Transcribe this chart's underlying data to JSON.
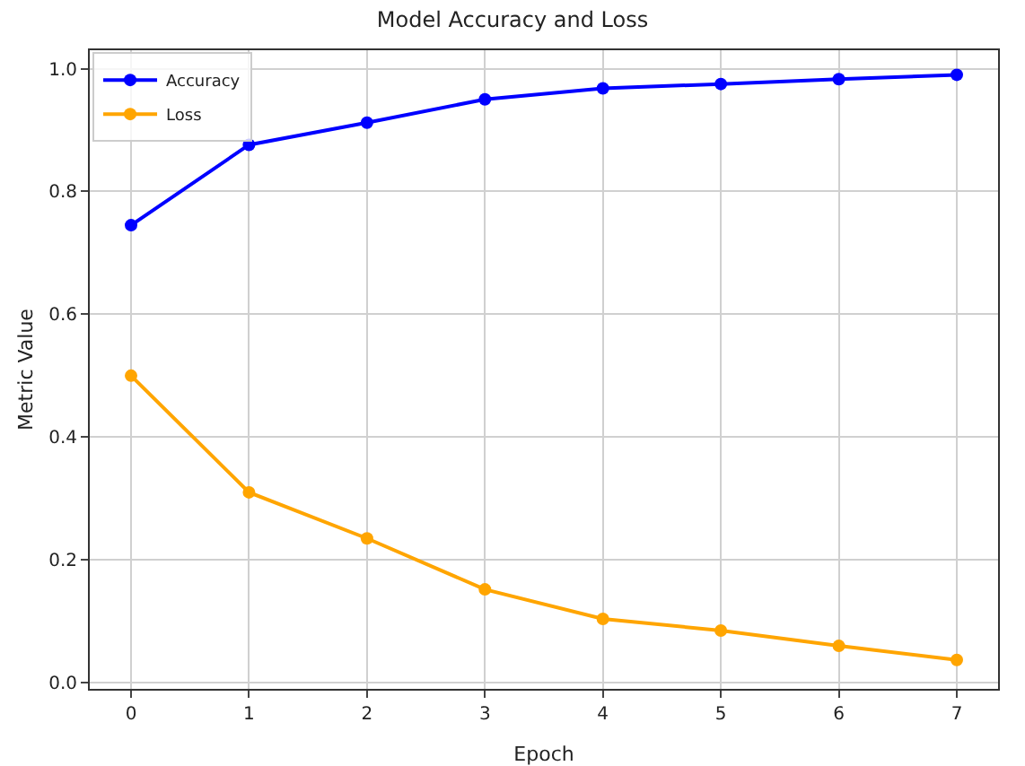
{
  "chart_data": {
    "type": "line",
    "title": "Model Accuracy and Loss",
    "xlabel": "Epoch",
    "ylabel": "Metric Value",
    "x": [
      0,
      1,
      2,
      3,
      4,
      5,
      6,
      7
    ],
    "series": [
      {
        "name": "Accuracy",
        "color": "#0000ff",
        "values": [
          0.745,
          0.876,
          0.912,
          0.95,
          0.968,
          0.975,
          0.983,
          0.99
        ]
      },
      {
        "name": "Loss",
        "color": "#ffa500",
        "values": [
          0.5,
          0.31,
          0.235,
          0.152,
          0.104,
          0.085,
          0.06,
          0.037
        ]
      }
    ],
    "xlim": [
      -0.35,
      7.35
    ],
    "xticks": [
      0,
      1,
      2,
      3,
      4,
      5,
      6,
      7
    ],
    "ylim": [
      -0.01,
      1.03
    ],
    "yticks": [
      {
        "value": 0,
        "label": "0.0"
      },
      0.2,
      0.4,
      0.6,
      0.8,
      {
        "value": 1,
        "label": "1.0"
      }
    ],
    "grid": true,
    "legend": "top left",
    "marker": "circle",
    "line_style": "solid"
  }
}
